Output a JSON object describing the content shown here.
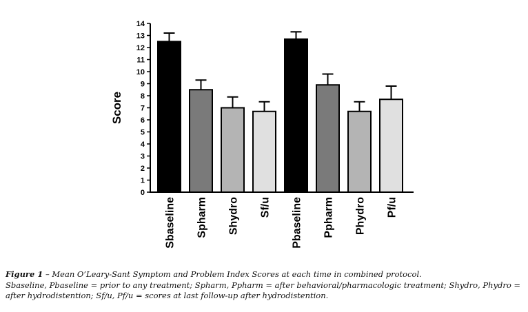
{
  "chart_data": {
    "type": "bar",
    "categories": [
      "Sbaseline",
      "Spharm",
      "Shydro",
      "Sf/u",
      "Pbaseline",
      "Ppharm",
      "Phydro",
      "Pf/u"
    ],
    "values": [
      12.5,
      8.5,
      7.0,
      6.7,
      12.7,
      8.9,
      6.7,
      7.7
    ],
    "error_upper": [
      13.2,
      9.3,
      7.9,
      7.5,
      13.3,
      9.8,
      7.5,
      8.8
    ],
    "bar_colors": [
      "#000000",
      "#7a7a7a",
      "#b4b4b4",
      "#e0e0e0",
      "#000000",
      "#7a7a7a",
      "#b4b4b4",
      "#e0e0e0"
    ],
    "title": "",
    "xlabel": "",
    "ylabel": "Score",
    "ylim": [
      0,
      14
    ],
    "yticks": [
      0,
      1,
      2,
      3,
      4,
      5,
      6,
      7,
      8,
      9,
      10,
      11,
      12,
      13,
      14
    ],
    "grid": false,
    "error_bars": "upper"
  },
  "caption": {
    "figure_label": "Figure 1",
    "title_text": " – Mean O’Leary-Sant Symptom and Problem Index Scores at each time in combined protocol.",
    "legend_text": "Sbaseline, Pbaseline = prior to any treatment; Spharm, Ppharm = after behavioral/pharmacologic treatment; Shydro, Phydro = after hydrodistention; Sf/u, Pf/u = scores at last follow-up after hydrodistention."
  }
}
